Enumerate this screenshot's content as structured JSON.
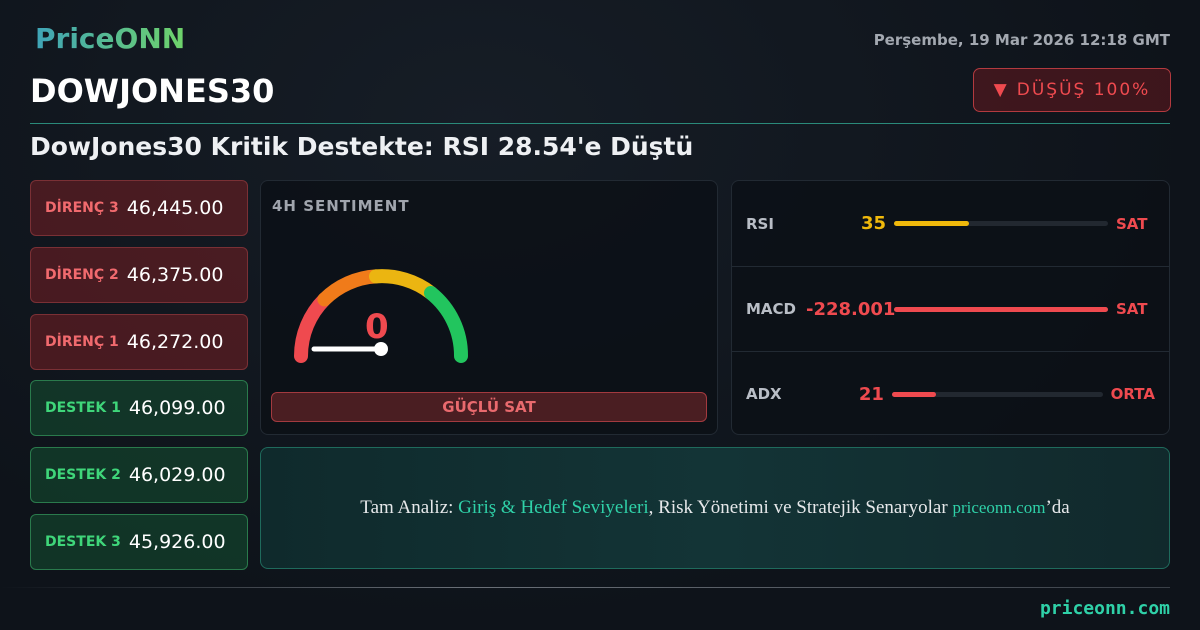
{
  "brand": {
    "logo": "PriceONN",
    "footer_domain": "priceonn.com"
  },
  "header": {
    "date": "Perşembe, 19 Mar 2026 12:18 GMT",
    "symbol": "DOWJONES30",
    "trend_icon": "triangle-down-icon",
    "trend_label": "DÜŞÜŞ 100%",
    "headline": "DowJones30 Kritik Destekte: RSI 28.54'e Düştü"
  },
  "levels": [
    {
      "label": "DİRENÇ 3",
      "value": "46,445.00",
      "type": "resistance"
    },
    {
      "label": "DİRENÇ 2",
      "value": "46,375.00",
      "type": "resistance"
    },
    {
      "label": "DİRENÇ 1",
      "value": "46,272.00",
      "type": "resistance"
    },
    {
      "label": "DESTEK 1",
      "value": "46,099.00",
      "type": "support"
    },
    {
      "label": "DESTEK 2",
      "value": "46,029.00",
      "type": "support"
    },
    {
      "label": "DESTEK 3",
      "value": "45,926.00",
      "type": "support"
    }
  ],
  "sentiment": {
    "title": "4H SENTIMENT",
    "value": "0",
    "gauge_value": 0,
    "label": "GÜÇLÜ SAT"
  },
  "indicators": [
    {
      "name": "RSI",
      "value": "35",
      "fill_pct": 35,
      "color": "#f0b90b",
      "signal": "SAT"
    },
    {
      "name": "MACD",
      "value": "-228.001",
      "fill_pct": 100,
      "color": "#ef4a4f",
      "signal": "SAT"
    },
    {
      "name": "ADX",
      "value": "21",
      "fill_pct": 21,
      "color": "#ef4a4f",
      "signal": "ORTA"
    }
  ],
  "cta": {
    "prefix": "Tam Analiz: ",
    "highlight": "Giriş & Hedef Seviyeleri",
    "middle": ", Risk Yönetimi ve Stratejik Senaryolar ",
    "domain": "priceonn.com",
    "suffix": "’da"
  }
}
